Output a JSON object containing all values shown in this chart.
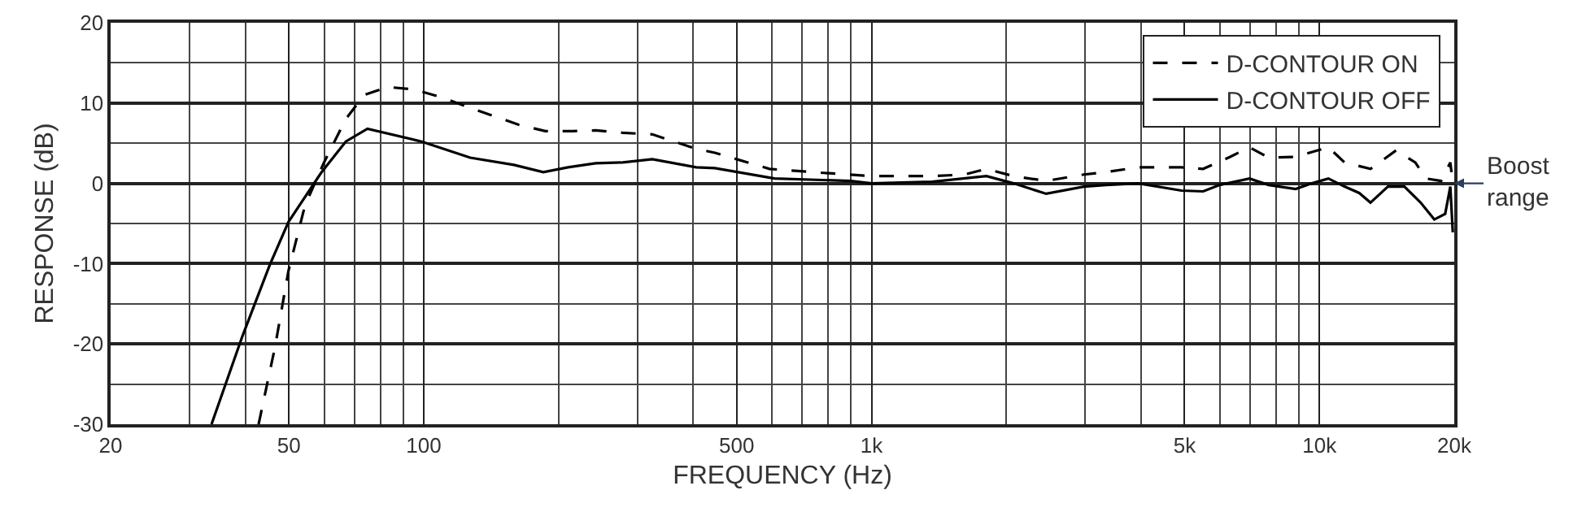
{
  "chart_data": {
    "type": "line",
    "xlabel": "FREQUENCY (Hz)",
    "ylabel": "RESPONSE (dB)",
    "log": "x",
    "grid": true,
    "legend": "top right",
    "marker": "none",
    "xlim": [
      20,
      20000
    ],
    "ylim": [
      -30,
      20
    ],
    "xticks": [
      20,
      {
        "value": 30,
        "label": null
      },
      {
        "value": 40,
        "label": null
      },
      50,
      {
        "value": 60,
        "label": null
      },
      {
        "value": 70,
        "label": null
      },
      {
        "value": 80,
        "label": null
      },
      {
        "value": 90,
        "label": null
      },
      100,
      {
        "value": 200,
        "label": null
      },
      {
        "value": 300,
        "label": null
      },
      {
        "value": 400,
        "label": null
      },
      500,
      {
        "value": 600,
        "label": null
      },
      {
        "value": 700,
        "label": null
      },
      {
        "value": 800,
        "label": null
      },
      {
        "value": 900,
        "label": null
      },
      {
        "value": 1000,
        "label": "1k"
      },
      {
        "value": 2000,
        "label": null
      },
      {
        "value": 3000,
        "label": null
      },
      {
        "value": 4000,
        "label": null
      },
      {
        "value": 5000,
        "label": "5k"
      },
      {
        "value": 6000,
        "label": null
      },
      {
        "value": 7000,
        "label": null
      },
      {
        "value": 8000,
        "label": null
      },
      {
        "value": 9000,
        "label": null
      },
      {
        "value": 10000,
        "label": "10k"
      },
      {
        "value": 20000,
        "label": "20k"
      }
    ],
    "yticks": [
      -30,
      {
        "value": -25,
        "label": null
      },
      -20,
      {
        "value": -15,
        "label": null
      },
      -10,
      {
        "value": -5,
        "label": null
      },
      0,
      {
        "value": 5,
        "label": null
      },
      10,
      {
        "value": 15,
        "label": null
      },
      20
    ],
    "annotations": [
      {
        "text": "Boost\nrange",
        "x": 20000,
        "y": 0
      }
    ],
    "series": [
      {
        "name": "D-CONTOUR ON",
        "color": "#000000",
        "line_style": "dashed",
        "x": [
          42.8,
          46.6,
          49.9,
          54.3,
          59.9,
          67,
          73.6,
          83.1,
          94.9,
          110,
          127,
          163,
          187,
          215,
          242,
          278,
          324,
          406,
          447,
          592,
          782,
          1000,
          1365,
          1614,
          1805,
          2075,
          2455,
          2980,
          3340,
          3940,
          4920,
          5500,
          6320,
          6980,
          7700,
          8850,
          10470,
          11380,
          13000,
          14830,
          16370,
          17300,
          18700,
          19600,
          19850
        ],
        "values": [
          -30,
          -20.3,
          -10.9,
          -2.8,
          2.6,
          8.0,
          11.0,
          12.0,
          11.7,
          10.7,
          9.4,
          7.3,
          6.5,
          6.5,
          6.6,
          6.3,
          6.1,
          4.3,
          3.8,
          1.8,
          1.3,
          0.9,
          0.9,
          1.1,
          1.8,
          0.9,
          0.3,
          1.1,
          1.4,
          2.0,
          2.0,
          1.8,
          3.3,
          4.5,
          3.2,
          3.3,
          4.5,
          2.6,
          1.8,
          4.1,
          2.6,
          0.6,
          0.3,
          2.6,
          0
        ]
      },
      {
        "name": "D-CONTOUR OFF",
        "color": "#000000",
        "line_style": "solid",
        "x": [
          33.6,
          39.4,
          45.3,
          49.9,
          59,
          67,
          74.9,
          99,
          127,
          159,
          185,
          210,
          242,
          278,
          324,
          406,
          447,
          607,
          898,
          1000,
          1365,
          1805,
          2075,
          2455,
          2980,
          3340,
          3940,
          4920,
          5500,
          5990,
          6980,
          7700,
          8850,
          9620,
          10470,
          11380,
          12270,
          13000,
          14220,
          15480,
          16830,
          18050,
          19090,
          19600,
          19850
        ],
        "values": [
          -30,
          -19,
          -10.2,
          -4.8,
          1.3,
          5.2,
          6.8,
          5.2,
          3.2,
          2.3,
          1.4,
          2.0,
          2.5,
          2.6,
          3.0,
          2.0,
          1.9,
          0.6,
          0.3,
          0,
          0.2,
          0.9,
          0,
          -1.3,
          -0.4,
          -0.2,
          0,
          -0.9,
          -1.0,
          -0.2,
          0.6,
          -0.2,
          -0.7,
          0,
          0.6,
          -0.4,
          -1.2,
          -2.4,
          -0.4,
          -0.4,
          -2.4,
          -4.5,
          -3.8,
          -0.4,
          -6.1
        ]
      }
    ]
  }
}
